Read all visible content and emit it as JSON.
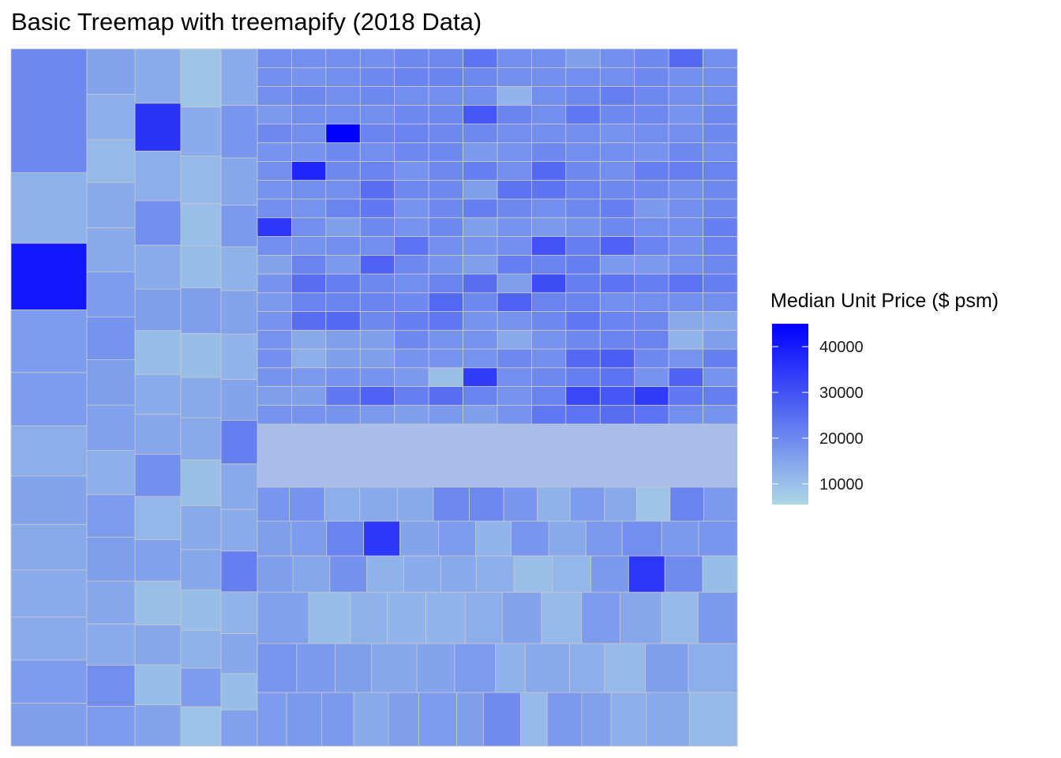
{
  "chart_data": {
    "type": "treemap",
    "title": "Basic Treemap with treemapify (2018 Data)",
    "colorbar": {
      "title": "Median Unit Price ($ psm)",
      "min": 5500,
      "max": 45000,
      "ticks": [
        10000,
        20000,
        30000,
        40000
      ],
      "tick_labels": [
        "10000",
        "20000",
        "30000",
        "40000"
      ],
      "color_low": "#add8e6",
      "color_high": "#0000ff"
    },
    "tile_border_color": "#c8c8c8",
    "columns": [
      [
        [
          55,
          16000
        ],
        [
          55,
          16500
        ],
        [
          55,
          13500
        ],
        [
          60,
          13500
        ],
        [
          58,
          14000
        ],
        [
          62,
          15000
        ],
        [
          64,
          13000
        ],
        [
          68,
          16500
        ],
        [
          80,
          16500
        ],
        [
          85,
          41000
        ],
        [
          90,
          12500
        ],
        [
          158,
          20000
        ]
      ],
      [
        [
          58,
          16500
        ],
        [
          60,
          19000
        ],
        [
          60,
          13500
        ],
        [
          62,
          14500
        ],
        [
          64,
          16000
        ],
        [
          62,
          16500
        ],
        [
          64,
          13000
        ],
        [
          66,
          15500
        ],
        [
          66,
          16000
        ],
        [
          62,
          18000
        ],
        [
          66,
          16500
        ],
        [
          64,
          14000
        ],
        [
          66,
          14000
        ],
        [
          62,
          11000
        ],
        [
          66,
          13000
        ],
        [
          66,
          15000
        ]
      ],
      [
        [
          52,
          15000
        ],
        [
          50,
          10500
        ],
        [
          50,
          14500
        ],
        [
          55,
          10000
        ],
        [
          52,
          15500
        ],
        [
          54,
          11500
        ],
        [
          53,
          19000
        ],
        [
          50,
          14500
        ],
        [
          50,
          13500
        ],
        [
          55,
          10500
        ],
        [
          52,
          16000
        ],
        [
          55,
          13500
        ],
        [
          56,
          19000
        ],
        [
          62,
          13000
        ],
        [
          60,
          35500
        ],
        [
          68,
          13500
        ]
      ],
      [
        [
          45,
          9500
        ],
        [
          44,
          16500
        ],
        [
          43,
          12500
        ],
        [
          46,
          10500
        ],
        [
          46,
          14500
        ],
        [
          50,
          14000
        ],
        [
          52,
          10000
        ],
        [
          48,
          14000
        ],
        [
          46,
          14000
        ],
        [
          50,
          10500
        ],
        [
          52,
          16000
        ],
        [
          48,
          10500
        ],
        [
          48,
          10000
        ],
        [
          54,
          11000
        ],
        [
          56,
          13500
        ],
        [
          66,
          9000
        ]
      ],
      [
        [
          40,
          15500
        ],
        [
          40,
          10500
        ],
        [
          44,
          14500
        ],
        [
          46,
          12000
        ],
        [
          45,
          22000
        ],
        [
          46,
          13500
        ],
        [
          50,
          14000
        ],
        [
          48,
          22000
        ],
        [
          45,
          15000
        ],
        [
          50,
          12000
        ],
        [
          48,
          15000
        ],
        [
          48,
          12500
        ],
        [
          46,
          17000
        ],
        [
          52,
          14500
        ],
        [
          58,
          17500
        ],
        [
          62,
          13500
        ]
      ]
    ],
    "rows": [
      [
        [
          44,
          16500
        ],
        [
          53,
          17000
        ],
        [
          48,
          17000
        ],
        [
          52,
          14000
        ],
        [
          46,
          16000
        ],
        [
          57,
          16500
        ],
        [
          40,
          16000
        ],
        [
          56,
          19500
        ],
        [
          40,
          11000
        ],
        [
          52,
          17000
        ],
        [
          44,
          15500
        ],
        [
          53,
          13000
        ],
        [
          65,
          14000
        ],
        [
          72,
          11000
        ]
      ],
      [
        [
          53,
          17500
        ],
        [
          52,
          17000
        ],
        [
          49,
          16000
        ],
        [
          61,
          14500
        ],
        [
          51,
          15000
        ],
        [
          55,
          16500
        ],
        [
          40,
          12500
        ],
        [
          60,
          14000
        ],
        [
          47,
          13000
        ],
        [
          55,
          11000
        ],
        [
          58,
          16000
        ],
        [
          66,
          13000
        ]
      ],
      [
        [
          68,
          15500
        ],
        [
          55,
          10500
        ],
        [
          49,
          12500
        ],
        [
          51,
          12000
        ],
        [
          52,
          12000
        ],
        [
          49,
          13000
        ],
        [
          52,
          15000
        ],
        [
          53,
          11000
        ],
        [
          51,
          16500
        ],
        [
          55,
          14500
        ],
        [
          48,
          11000
        ],
        [
          52,
          17000
        ]
      ],
      [
        [
          48,
          16000
        ],
        [
          50,
          14500
        ],
        [
          50,
          18500
        ],
        [
          50,
          12500
        ],
        [
          50,
          13500
        ],
        [
          48,
          14000
        ],
        [
          51,
          13000
        ],
        [
          52,
          10000
        ],
        [
          52,
          11500
        ],
        [
          51,
          17000
        ],
        [
          49,
          35000
        ],
        [
          51,
          19500
        ],
        [
          47,
          10500
        ]
      ],
      [
        [
          42,
          16000
        ],
        [
          44,
          16500
        ],
        [
          46,
          21000
        ],
        [
          45,
          35000
        ],
        [
          48,
          15000
        ],
        [
          46,
          16500
        ],
        [
          44,
          12000
        ],
        [
          47,
          17500
        ],
        [
          46,
          14000
        ],
        [
          45,
          17000
        ],
        [
          49,
          19000
        ],
        [
          46,
          17000
        ],
        [
          48,
          17500
        ]
      ],
      [
        [
          40,
          17500
        ],
        [
          44,
          18000
        ],
        [
          44,
          13000
        ],
        [
          47,
          14000
        ],
        [
          45,
          14000
        ],
        [
          45,
          20000
        ],
        [
          43,
          20000
        ],
        [
          42,
          17500
        ],
        [
          41,
          12500
        ],
        [
          43,
          16500
        ],
        [
          40,
          14000
        ],
        [
          42,
          9000
        ],
        [
          42,
          21000
        ],
        [
          42,
          17000
        ]
      ]
    ],
    "grid_cells": [
      [
        18000,
        18000,
        18000,
        17000,
        16000,
        17000,
        16000,
        18000,
        23000,
        24000,
        25000,
        24000,
        19000,
        18000
      ],
      [
        16000,
        16000,
        23000,
        27000,
        22000,
        25000,
        21000,
        18000,
        21000,
        32000,
        29000,
        34000,
        23000,
        22000
      ],
      [
        18000,
        17000,
        18000,
        18000,
        17000,
        10000,
        34000,
        19000,
        20000,
        22000,
        24000,
        18000,
        27000,
        18000
      ],
      [
        19000,
        13000,
        16000,
        16000,
        18000,
        18000,
        18000,
        20000,
        19000,
        26000,
        28000,
        20000,
        18000,
        22000
      ],
      [
        18000,
        14000,
        16000,
        16000,
        20000,
        18000,
        18000,
        14000,
        18000,
        20000,
        21000,
        21000,
        12000,
        16000
      ],
      [
        18000,
        25000,
        26000,
        20000,
        22000,
        23000,
        18000,
        18000,
        20000,
        23000,
        21000,
        20000,
        14000,
        14000
      ],
      [
        17000,
        21000,
        21000,
        21000,
        20000,
        26000,
        20000,
        27000,
        21000,
        21000,
        19000,
        19000,
        19000,
        19000
      ],
      [
        18000,
        25000,
        22000,
        20000,
        19000,
        21000,
        25000,
        16000,
        31000,
        22000,
        24000,
        22000,
        24000,
        22000
      ],
      [
        15000,
        21000,
        17000,
        27000,
        20000,
        18000,
        16000,
        22000,
        21000,
        22000,
        17000,
        17000,
        19000,
        20000
      ],
      [
        19000,
        18000,
        19000,
        19000,
        24000,
        19000,
        18000,
        19000,
        30000,
        22000,
        27000,
        21000,
        19000,
        21000
      ],
      [
        35000,
        19000,
        16000,
        20000,
        18000,
        20000,
        16000,
        18000,
        17000,
        18000,
        20000,
        19000,
        19000,
        22000
      ],
      [
        19000,
        18000,
        21000,
        23000,
        18000,
        20000,
        22000,
        20000,
        19000,
        20000,
        22000,
        17000,
        19000,
        20000
      ],
      [
        18000,
        19000,
        19000,
        25000,
        20000,
        20000,
        16000,
        24000,
        24000,
        21000,
        20000,
        20000,
        19000,
        20000
      ],
      [
        19000,
        38000,
        20000,
        21000,
        18000,
        20000,
        22000,
        19000,
        26000,
        20000,
        19000,
        22000,
        22000,
        21000
      ],
      [
        18000,
        18000,
        20000,
        19000,
        20000,
        20000,
        17000,
        18000,
        20000,
        19000,
        19000,
        18000,
        20000,
        19000
      ],
      [
        20000,
        19000,
        45000,
        21000,
        21000,
        20000,
        20000,
        19000,
        19000,
        19000,
        18000,
        19000,
        19000,
        20000
      ],
      [
        17000,
        19000,
        19000,
        19000,
        20000,
        20000,
        29000,
        21000,
        19000,
        23000,
        20000,
        20000,
        18000,
        20000
      ],
      [
        19000,
        20000,
        19000,
        20000,
        19000,
        19000,
        19000,
        12000,
        19000,
        20000,
        22000,
        20000,
        19000,
        19000
      ],
      [
        19000,
        18000,
        19000,
        20000,
        21000,
        21000,
        20000,
        19000,
        19000,
        19000,
        19000,
        20000,
        19000,
        19000
      ],
      [
        19000,
        19000,
        19000,
        19000,
        20000,
        20000,
        24000,
        19000,
        19000,
        16000,
        19000,
        20000,
        26000,
        19000
      ]
    ]
  }
}
